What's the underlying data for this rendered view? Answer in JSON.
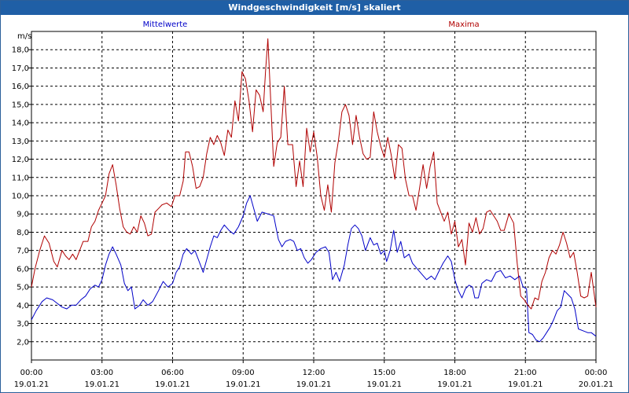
{
  "window": {
    "title": "Windgeschwindigkeit [m/s] skaliert"
  },
  "chart_data": {
    "type": "line",
    "title": "Windgeschwindigkeit [m/s] skaliert",
    "ylabel": "m/s",
    "ylim": [
      1.0,
      19.0
    ],
    "xlim_hours": [
      0,
      24
    ],
    "grid": true,
    "y_ticks": [
      "2,0",
      "3,0",
      "4,0",
      "5,0",
      "6,0",
      "7,0",
      "8,0",
      "9,0",
      "10,0",
      "11,0",
      "12,0",
      "13,0",
      "14,0",
      "15,0",
      "16,0",
      "17,0",
      "18,0"
    ],
    "x_ticks": [
      {
        "time": "00:00",
        "date": "19.01.21"
      },
      {
        "time": "03:00",
        "date": "19.01.21"
      },
      {
        "time": "06:00",
        "date": "19.01.21"
      },
      {
        "time": "09:00",
        "date": "19.01.21"
      },
      {
        "time": "12:00",
        "date": "19.01.21"
      },
      {
        "time": "15:00",
        "date": "19.01.21"
      },
      {
        "time": "18:00",
        "date": "19.01.21"
      },
      {
        "time": "21:00",
        "date": "19.01.21"
      },
      {
        "time": "00:00",
        "date": "20.01.21"
      }
    ],
    "series": [
      {
        "name": "Mittelwerte",
        "color": "#0000c8",
        "points": [
          [
            0.0,
            3.2
          ],
          [
            0.2,
            3.7
          ],
          [
            0.45,
            4.2
          ],
          [
            0.65,
            4.4
          ],
          [
            0.9,
            4.3
          ],
          [
            1.1,
            4.1
          ],
          [
            1.3,
            3.9
          ],
          [
            1.5,
            3.8
          ],
          [
            1.7,
            4.0
          ],
          [
            1.9,
            4.0
          ],
          [
            2.1,
            4.3
          ],
          [
            2.3,
            4.5
          ],
          [
            2.5,
            4.9
          ],
          [
            2.7,
            5.1
          ],
          [
            2.85,
            5.0
          ],
          [
            3.0,
            5.4
          ],
          [
            3.15,
            6.2
          ],
          [
            3.3,
            6.8
          ],
          [
            3.45,
            7.2
          ],
          [
            3.6,
            6.8
          ],
          [
            3.8,
            6.2
          ],
          [
            3.95,
            5.2
          ],
          [
            4.1,
            4.8
          ],
          [
            4.25,
            5.0
          ],
          [
            4.4,
            3.8
          ],
          [
            4.6,
            4.0
          ],
          [
            4.75,
            4.3
          ],
          [
            4.95,
            4.0
          ],
          [
            5.15,
            4.2
          ],
          [
            5.4,
            4.8
          ],
          [
            5.6,
            5.3
          ],
          [
            5.8,
            5.0
          ],
          [
            6.0,
            5.2
          ],
          [
            6.15,
            5.8
          ],
          [
            6.3,
            6.1
          ],
          [
            6.45,
            6.8
          ],
          [
            6.6,
            7.1
          ],
          [
            6.8,
            6.8
          ],
          [
            6.95,
            7.0
          ],
          [
            7.1,
            6.5
          ],
          [
            7.3,
            5.8
          ],
          [
            7.45,
            6.5
          ],
          [
            7.6,
            7.2
          ],
          [
            7.75,
            7.8
          ],
          [
            7.9,
            7.7
          ],
          [
            8.05,
            8.1
          ],
          [
            8.2,
            8.4
          ],
          [
            8.4,
            8.1
          ],
          [
            8.6,
            7.9
          ],
          [
            8.8,
            8.3
          ],
          [
            9.0,
            8.9
          ],
          [
            9.15,
            9.6
          ],
          [
            9.3,
            10.0
          ],
          [
            9.45,
            9.3
          ],
          [
            9.6,
            8.6
          ],
          [
            9.8,
            9.1
          ],
          [
            10.05,
            9.0
          ],
          [
            10.3,
            8.9
          ],
          [
            10.5,
            7.6
          ],
          [
            10.65,
            7.2
          ],
          [
            10.8,
            7.5
          ],
          [
            11.0,
            7.6
          ],
          [
            11.15,
            7.5
          ],
          [
            11.3,
            7.0
          ],
          [
            11.45,
            7.1
          ],
          [
            11.6,
            6.6
          ],
          [
            11.75,
            6.3
          ],
          [
            11.9,
            6.5
          ],
          [
            12.1,
            6.9
          ],
          [
            12.3,
            7.1
          ],
          [
            12.5,
            7.2
          ],
          [
            12.65,
            6.9
          ],
          [
            12.8,
            5.4
          ],
          [
            12.95,
            5.8
          ],
          [
            13.1,
            5.3
          ],
          [
            13.3,
            6.2
          ],
          [
            13.45,
            7.3
          ],
          [
            13.6,
            8.2
          ],
          [
            13.75,
            8.4
          ],
          [
            13.9,
            8.2
          ],
          [
            14.05,
            7.8
          ],
          [
            14.2,
            7.0
          ],
          [
            14.4,
            7.7
          ],
          [
            14.55,
            7.3
          ],
          [
            14.7,
            7.4
          ],
          [
            14.85,
            6.8
          ],
          [
            15.0,
            7.0
          ],
          [
            15.1,
            6.4
          ],
          [
            15.25,
            7.0
          ],
          [
            15.4,
            8.1
          ],
          [
            15.55,
            6.9
          ],
          [
            15.7,
            7.5
          ],
          [
            15.85,
            6.6
          ],
          [
            16.05,
            6.8
          ],
          [
            16.2,
            6.3
          ],
          [
            16.4,
            6.0
          ],
          [
            16.6,
            5.7
          ],
          [
            16.8,
            5.4
          ],
          [
            17.0,
            5.6
          ],
          [
            17.15,
            5.4
          ],
          [
            17.3,
            5.8
          ],
          [
            17.5,
            6.3
          ],
          [
            17.7,
            6.7
          ],
          [
            17.85,
            6.4
          ],
          [
            18.0,
            5.4
          ],
          [
            18.15,
            4.8
          ],
          [
            18.3,
            4.4
          ],
          [
            18.45,
            4.9
          ],
          [
            18.6,
            5.1
          ],
          [
            18.75,
            5.0
          ],
          [
            18.85,
            4.4
          ],
          [
            19.0,
            4.4
          ],
          [
            19.15,
            5.2
          ],
          [
            19.35,
            5.4
          ],
          [
            19.55,
            5.3
          ],
          [
            19.75,
            5.8
          ],
          [
            19.95,
            5.9
          ],
          [
            20.15,
            5.5
          ],
          [
            20.35,
            5.6
          ],
          [
            20.55,
            5.4
          ],
          [
            20.75,
            5.6
          ],
          [
            20.9,
            5.0
          ],
          [
            21.05,
            4.9
          ],
          [
            21.15,
            2.5
          ],
          [
            21.3,
            2.4
          ],
          [
            21.45,
            2.1
          ],
          [
            21.6,
            2.0
          ],
          [
            21.75,
            2.2
          ],
          [
            21.9,
            2.5
          ],
          [
            22.05,
            2.8
          ],
          [
            22.2,
            3.2
          ],
          [
            22.35,
            3.7
          ],
          [
            22.5,
            3.9
          ],
          [
            22.65,
            4.8
          ],
          [
            22.8,
            4.6
          ],
          [
            22.95,
            4.4
          ],
          [
            23.1,
            3.8
          ],
          [
            23.25,
            2.7
          ],
          [
            23.45,
            2.6
          ],
          [
            23.65,
            2.5
          ],
          [
            23.8,
            2.5
          ],
          [
            24.0,
            2.3
          ]
        ]
      },
      {
        "name": "Maxima",
        "color": "#b00000",
        "points": [
          [
            0.0,
            5.0
          ],
          [
            0.15,
            6.0
          ],
          [
            0.35,
            7.0
          ],
          [
            0.55,
            7.8
          ],
          [
            0.75,
            7.4
          ],
          [
            0.95,
            6.4
          ],
          [
            1.1,
            6.1
          ],
          [
            1.3,
            7.0
          ],
          [
            1.45,
            6.7
          ],
          [
            1.6,
            6.5
          ],
          [
            1.75,
            6.8
          ],
          [
            1.9,
            6.5
          ],
          [
            2.05,
            7.0
          ],
          [
            2.2,
            7.5
          ],
          [
            2.4,
            7.5
          ],
          [
            2.55,
            8.3
          ],
          [
            2.7,
            8.6
          ],
          [
            2.85,
            9.2
          ],
          [
            3.0,
            9.6
          ],
          [
            3.15,
            10.0
          ],
          [
            3.3,
            11.2
          ],
          [
            3.45,
            11.7
          ],
          [
            3.6,
            10.6
          ],
          [
            3.75,
            9.3
          ],
          [
            3.9,
            8.3
          ],
          [
            4.05,
            8.0
          ],
          [
            4.2,
            7.9
          ],
          [
            4.35,
            8.3
          ],
          [
            4.5,
            8.0
          ],
          [
            4.65,
            8.9
          ],
          [
            4.8,
            8.5
          ],
          [
            4.95,
            7.8
          ],
          [
            5.1,
            7.9
          ],
          [
            5.25,
            9.1
          ],
          [
            5.4,
            9.3
          ],
          [
            5.55,
            9.5
          ],
          [
            5.75,
            9.6
          ],
          [
            5.95,
            9.4
          ],
          [
            6.1,
            10.0
          ],
          [
            6.3,
            10.0
          ],
          [
            6.45,
            10.8
          ],
          [
            6.55,
            12.4
          ],
          [
            6.7,
            12.4
          ],
          [
            6.85,
            11.6
          ],
          [
            7.0,
            10.4
          ],
          [
            7.15,
            10.5
          ],
          [
            7.3,
            11.0
          ],
          [
            7.45,
            12.3
          ],
          [
            7.6,
            13.2
          ],
          [
            7.75,
            12.8
          ],
          [
            7.9,
            13.3
          ],
          [
            8.05,
            12.9
          ],
          [
            8.2,
            12.2
          ],
          [
            8.35,
            13.6
          ],
          [
            8.5,
            13.2
          ],
          [
            8.65,
            15.2
          ],
          [
            8.8,
            14.1
          ],
          [
            8.95,
            16.8
          ],
          [
            9.1,
            16.4
          ],
          [
            9.25,
            15.2
          ],
          [
            9.4,
            13.5
          ],
          [
            9.55,
            15.8
          ],
          [
            9.7,
            15.5
          ],
          [
            9.85,
            14.6
          ],
          [
            9.95,
            16.8
          ],
          [
            10.05,
            18.6
          ],
          [
            10.15,
            15.8
          ],
          [
            10.3,
            11.6
          ],
          [
            10.45,
            12.9
          ],
          [
            10.6,
            13.2
          ],
          [
            10.75,
            16.0
          ],
          [
            10.9,
            12.8
          ],
          [
            11.1,
            12.8
          ],
          [
            11.25,
            10.5
          ],
          [
            11.4,
            11.9
          ],
          [
            11.55,
            10.5
          ],
          [
            11.7,
            13.7
          ],
          [
            11.85,
            12.4
          ],
          [
            12.0,
            13.5
          ],
          [
            12.15,
            12.1
          ],
          [
            12.3,
            10.0
          ],
          [
            12.45,
            9.2
          ],
          [
            12.6,
            10.6
          ],
          [
            12.75,
            9.1
          ],
          [
            12.9,
            11.8
          ],
          [
            13.05,
            13.0
          ],
          [
            13.2,
            14.6
          ],
          [
            13.35,
            15.0
          ],
          [
            13.5,
            14.4
          ],
          [
            13.65,
            12.8
          ],
          [
            13.8,
            14.4
          ],
          [
            13.95,
            13.2
          ],
          [
            14.1,
            12.3
          ],
          [
            14.25,
            12.0
          ],
          [
            14.4,
            12.1
          ],
          [
            14.55,
            14.6
          ],
          [
            14.7,
            13.5
          ],
          [
            14.85,
            12.7
          ],
          [
            15.0,
            12.1
          ],
          [
            15.15,
            13.2
          ],
          [
            15.3,
            12.2
          ],
          [
            15.45,
            10.9
          ],
          [
            15.6,
            12.8
          ],
          [
            15.75,
            12.6
          ],
          [
            15.9,
            10.9
          ],
          [
            16.05,
            10.0
          ],
          [
            16.2,
            10.0
          ],
          [
            16.35,
            9.2
          ],
          [
            16.5,
            10.4
          ],
          [
            16.65,
            11.7
          ],
          [
            16.8,
            10.4
          ],
          [
            16.95,
            11.6
          ],
          [
            17.1,
            12.4
          ],
          [
            17.25,
            9.6
          ],
          [
            17.4,
            9.1
          ],
          [
            17.55,
            8.6
          ],
          [
            17.7,
            9.1
          ],
          [
            17.85,
            7.9
          ],
          [
            18.0,
            8.6
          ],
          [
            18.15,
            7.2
          ],
          [
            18.3,
            7.6
          ],
          [
            18.45,
            6.2
          ],
          [
            18.6,
            8.5
          ],
          [
            18.75,
            8.0
          ],
          [
            18.9,
            8.8
          ],
          [
            19.05,
            7.9
          ],
          [
            19.2,
            8.2
          ],
          [
            19.35,
            9.1
          ],
          [
            19.5,
            9.2
          ],
          [
            19.65,
            8.9
          ],
          [
            19.8,
            8.6
          ],
          [
            19.95,
            8.1
          ],
          [
            20.1,
            8.1
          ],
          [
            20.3,
            9.0
          ],
          [
            20.5,
            8.5
          ],
          [
            20.65,
            6.3
          ],
          [
            20.8,
            4.5
          ],
          [
            20.95,
            4.3
          ],
          [
            21.1,
            4.0
          ],
          [
            21.25,
            3.8
          ],
          [
            21.4,
            4.4
          ],
          [
            21.55,
            4.3
          ],
          [
            21.7,
            5.3
          ],
          [
            21.85,
            5.8
          ],
          [
            22.0,
            6.6
          ],
          [
            22.15,
            7.0
          ],
          [
            22.3,
            6.8
          ],
          [
            22.45,
            7.3
          ],
          [
            22.6,
            8.0
          ],
          [
            22.75,
            7.4
          ],
          [
            22.9,
            6.6
          ],
          [
            23.05,
            6.9
          ],
          [
            23.2,
            5.8
          ],
          [
            23.35,
            4.5
          ],
          [
            23.5,
            4.4
          ],
          [
            23.65,
            4.5
          ],
          [
            23.8,
            5.8
          ],
          [
            24.0,
            3.9
          ]
        ]
      }
    ]
  }
}
